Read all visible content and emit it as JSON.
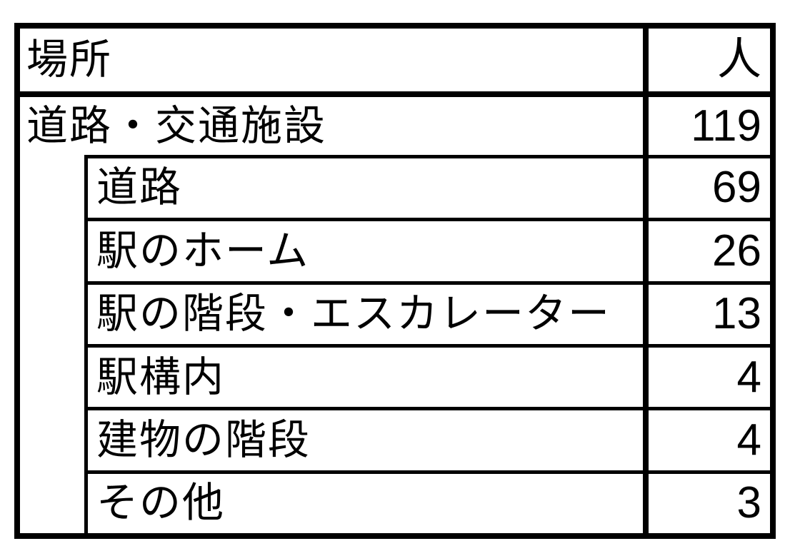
{
  "table": {
    "header": {
      "place": "場所",
      "count": "人"
    },
    "rows": [
      {
        "label": "道路・交通施設",
        "value": "119",
        "level": 0
      },
      {
        "label": "道路",
        "value": "69",
        "level": 1
      },
      {
        "label": "駅のホーム",
        "value": "26",
        "level": 1
      },
      {
        "label": "駅の階段・エスカレーター",
        "value": "13",
        "level": 1
      },
      {
        "label": "駅構内",
        "value": "4",
        "level": 1
      },
      {
        "label": "建物の階段",
        "value": "4",
        "level": 1
      },
      {
        "label": "その他",
        "value": "3",
        "level": 1
      }
    ]
  },
  "chart_data": {
    "type": "table",
    "title": "",
    "columns": [
      "場所",
      "人"
    ],
    "categories": [
      "道路・交通施設",
      "道路",
      "駅のホーム",
      "駅の階段・エスカレーター",
      "駅構内",
      "建物の階段",
      "その他"
    ],
    "values": [
      119,
      69,
      26,
      13,
      4,
      4,
      3
    ]
  },
  "colors": {
    "border": "#000000",
    "background": "#ffffff",
    "text": "#000000"
  }
}
